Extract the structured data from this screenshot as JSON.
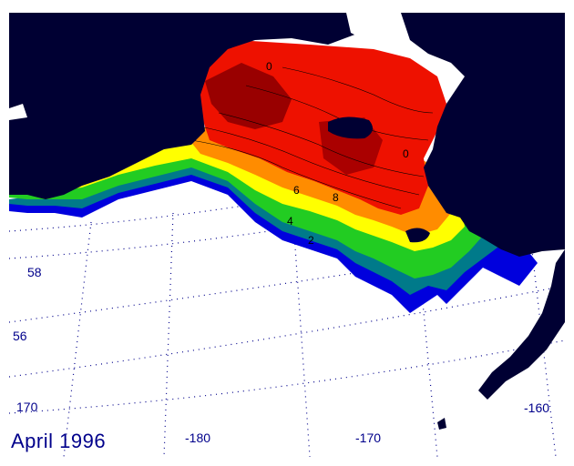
{
  "title": "April 1996",
  "lat_labels": [
    "58",
    "56",
    "170"
  ],
  "lon_labels": [
    "-180",
    "-170",
    "-160"
  ],
  "contour_labels": [
    "0",
    "6",
    "8",
    "4",
    "2",
    "0"
  ],
  "colors": {
    "land": "#000033",
    "ocean": "#ffffff",
    "grid": "#00008b",
    "band_deep_blue": "#0000dd",
    "band_teal": "#007a8a",
    "band_green": "#22cc22",
    "band_yellow": "#ffff00",
    "band_orange": "#ff8c00",
    "band_red": "#ee1100",
    "band_dark_red": "#990000"
  }
}
